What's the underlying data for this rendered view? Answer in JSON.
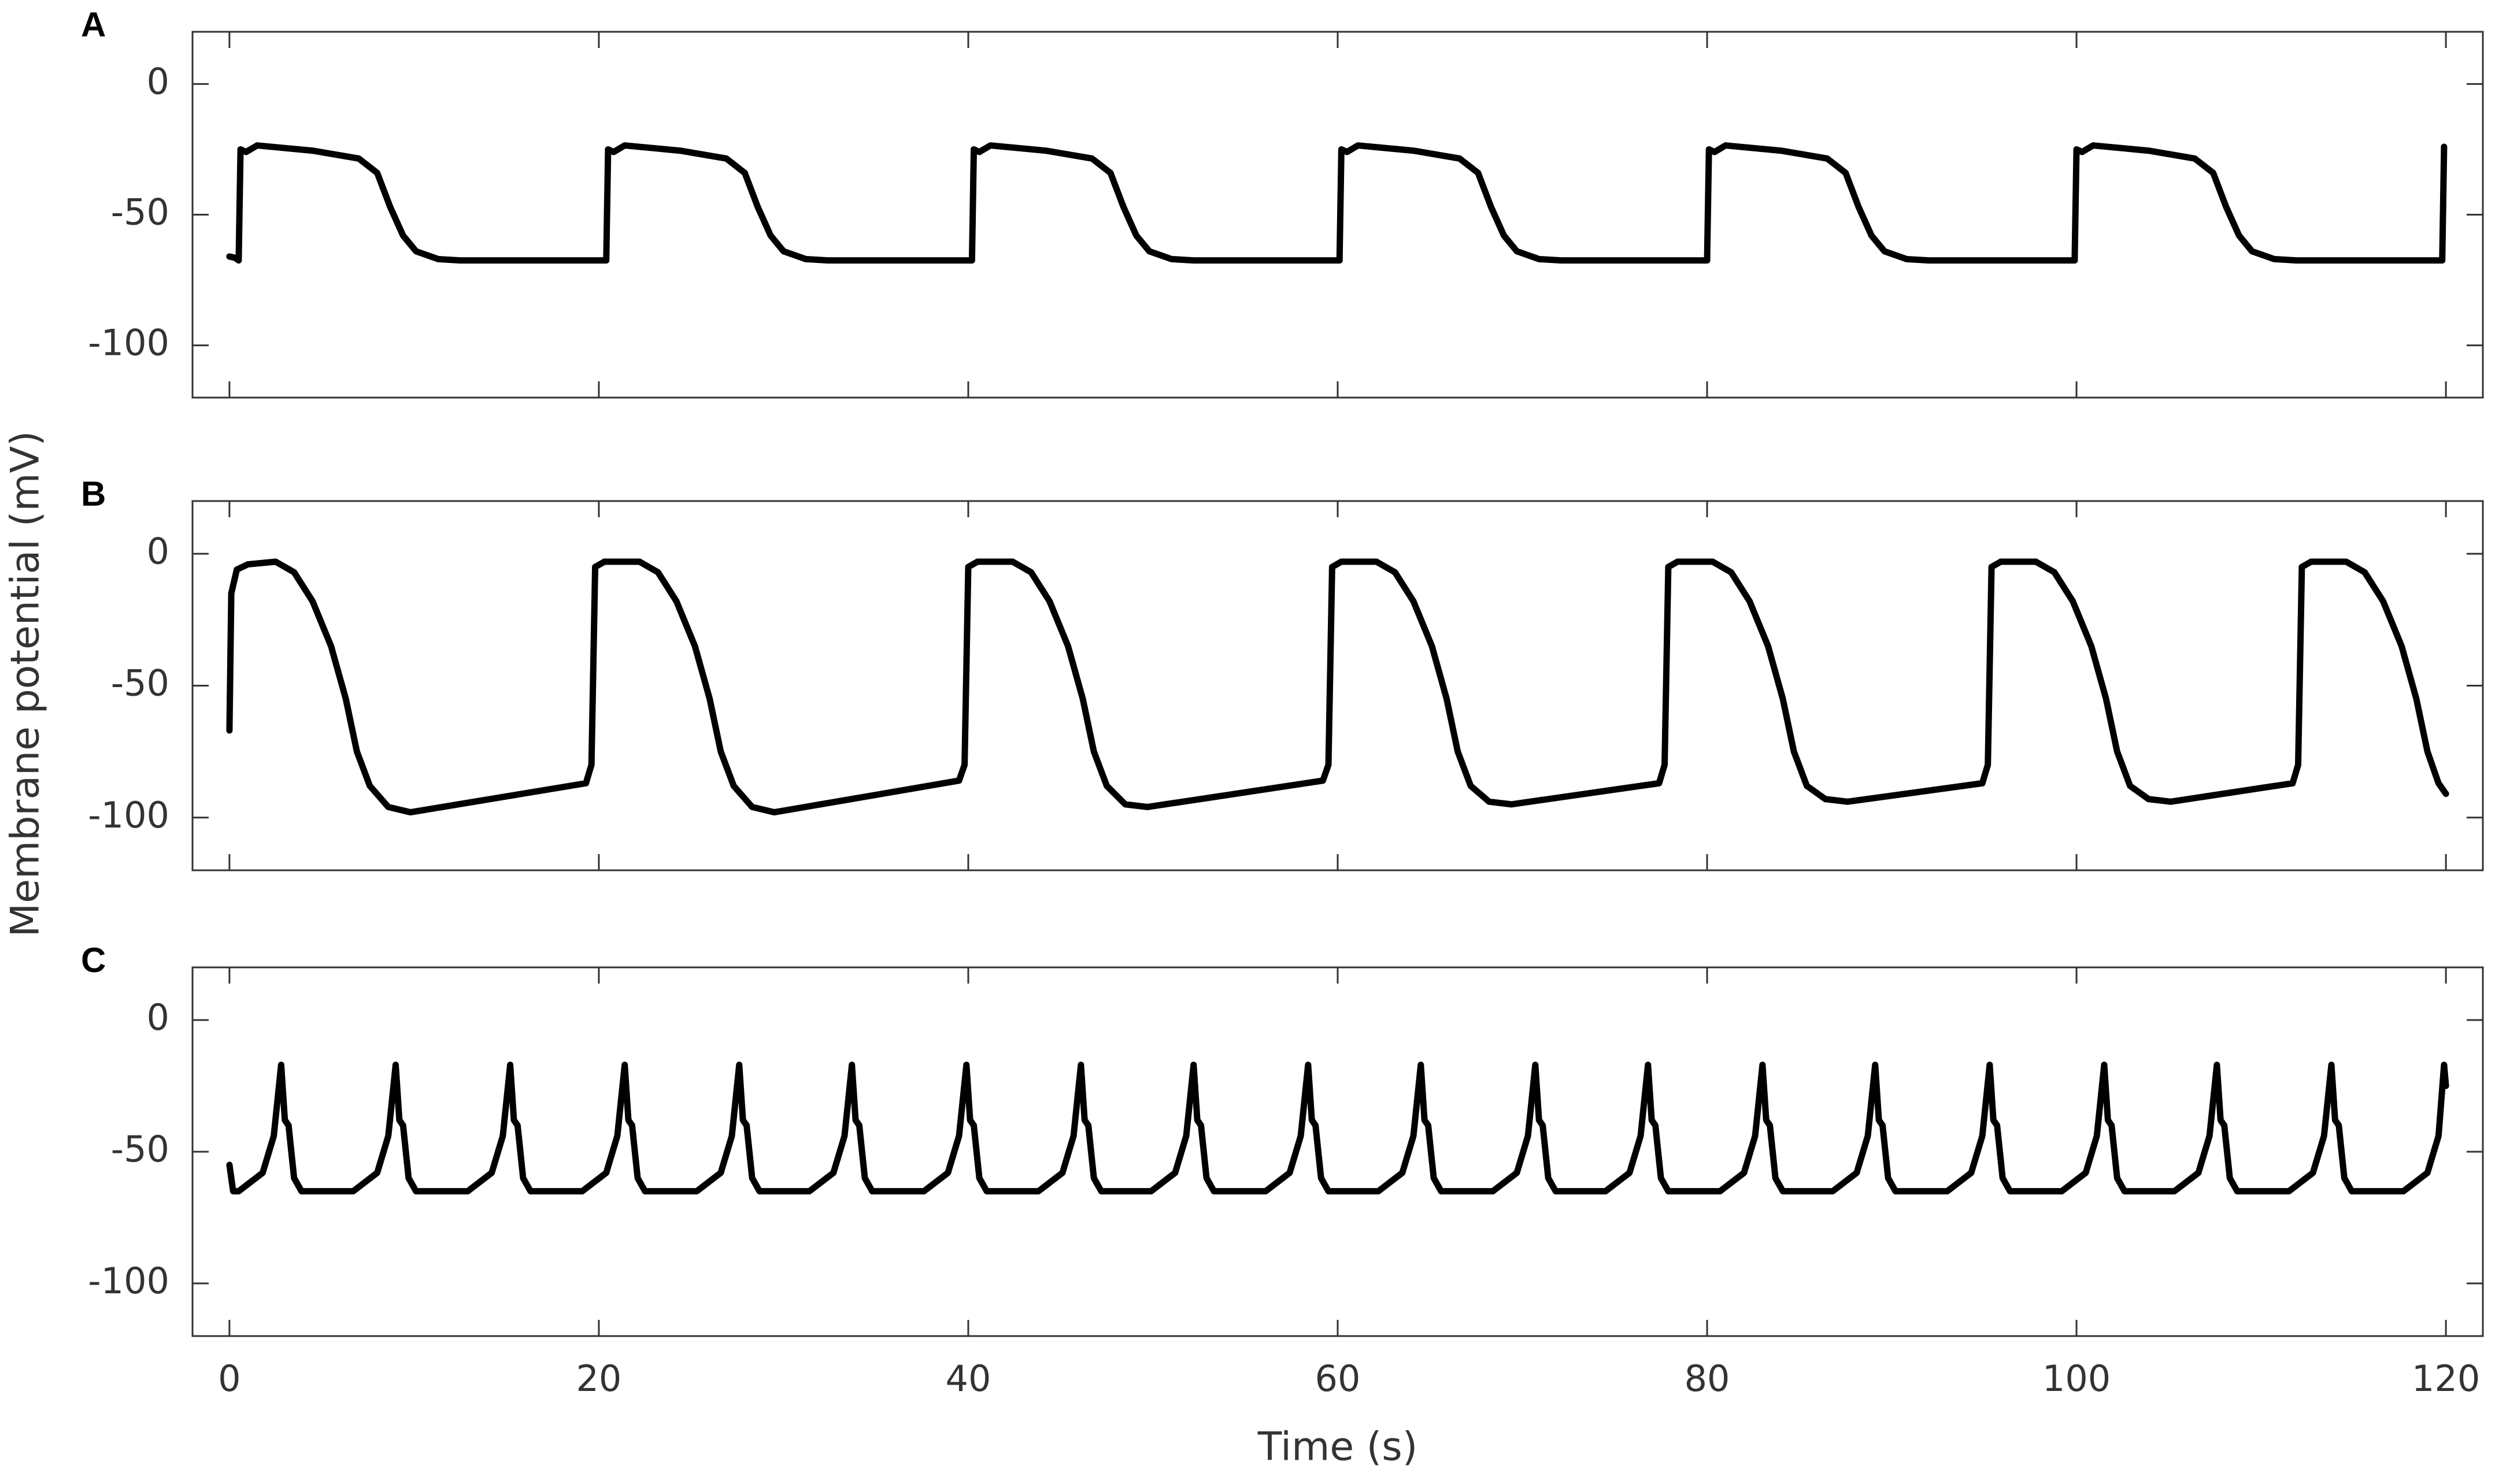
{
  "chart_data": [
    {
      "type": "line",
      "label": "A",
      "color": "#000000",
      "xlim": [
        -2,
        122
      ],
      "ylim": [
        -120,
        20
      ],
      "xticks": [
        0,
        20,
        40,
        60,
        80,
        100,
        120
      ],
      "yticks": [
        -100,
        -50,
        0
      ],
      "x": [
        0,
        0.3,
        0.5,
        0.6,
        0.9,
        1.5,
        4.5,
        7.0,
        8.0,
        8.7,
        9.4,
        10.1,
        11.3,
        12.5,
        20.4,
        20.5,
        20.8,
        21.4,
        24.4,
        26.9,
        27.9,
        28.6,
        29.3,
        30.0,
        31.2,
        32.4,
        40.2,
        40.3,
        40.6,
        41.2,
        44.2,
        46.7,
        47.7,
        48.4,
        49.1,
        49.8,
        51.0,
        52.2,
        60.1,
        60.2,
        60.5,
        61.1,
        64.1,
        66.6,
        67.6,
        68.3,
        69.0,
        69.7,
        70.9,
        72.1,
        80.0,
        80.1,
        80.4,
        81.0,
        84.0,
        86.5,
        87.5,
        88.2,
        88.9,
        89.6,
        90.8,
        92.0,
        99.9,
        100.0,
        100.3,
        100.9,
        103.9,
        106.4,
        107.4,
        108.1,
        108.8,
        109.5,
        110.7,
        111.9,
        119.8,
        119.9
      ],
      "values": [
        -66,
        -66.5,
        -67.5,
        -25,
        -26,
        -23.5,
        -25.5,
        -28.5,
        -34,
        -47,
        -58,
        -64,
        -67,
        -67.5,
        -67.5,
        -25,
        -26,
        -23.5,
        -25.5,
        -28.5,
        -34,
        -47,
        -58,
        -64,
        -67,
        -67.5,
        -67.5,
        -25,
        -26,
        -23.5,
        -25.5,
        -28.5,
        -34,
        -47,
        -58,
        -64,
        -67,
        -67.5,
        -67.5,
        -25,
        -26,
        -23.5,
        -25.5,
        -28.5,
        -34,
        -47,
        -58,
        -64,
        -67,
        -67.5,
        -67.5,
        -25,
        -26,
        -23.5,
        -25.5,
        -28.5,
        -34,
        -47,
        -58,
        -64,
        -67,
        -67.5,
        -67.5,
        -25,
        -26,
        -23.5,
        -25.5,
        -28.5,
        -34,
        -47,
        -58,
        -64,
        -67,
        -67.5,
        -67.5,
        -24
      ]
    },
    {
      "type": "line",
      "label": "B",
      "color": "#000000",
      "ylabel": "Membrane potential (mV)",
      "xlim": [
        -2,
        122
      ],
      "ylim": [
        -120,
        20
      ],
      "xticks": [
        0,
        20,
        40,
        60,
        80,
        100,
        120
      ],
      "yticks": [
        -100,
        -50,
        0
      ],
      "x": [
        0,
        0.1,
        0.4,
        1.0,
        2.5,
        3.5,
        4.5,
        5.5,
        6.3,
        6.9,
        7.6,
        8.6,
        9.8,
        19.3,
        19.6,
        19.8,
        20.3,
        22.2,
        23.2,
        24.2,
        25.2,
        26.0,
        26.6,
        27.3,
        28.3,
        29.5,
        39.5,
        39.8,
        40.0,
        40.5,
        42.4,
        43.4,
        44.4,
        45.4,
        46.2,
        46.8,
        47.5,
        48.5,
        49.7,
        59.2,
        59.5,
        59.7,
        60.2,
        62.1,
        63.1,
        64.1,
        65.1,
        65.9,
        66.5,
        67.2,
        68.2,
        69.4,
        77.4,
        77.7,
        77.9,
        78.4,
        80.3,
        81.3,
        82.3,
        83.3,
        84.1,
        84.7,
        85.4,
        86.4,
        87.6,
        94.9,
        95.2,
        95.4,
        95.9,
        97.8,
        98.8,
        99.8,
        100.8,
        101.6,
        102.2,
        102.9,
        103.9,
        105.1,
        111.7,
        112.0,
        112.2,
        112.7,
        114.6,
        115.6,
        116.6,
        117.6,
        118.4,
        119.0,
        119.6,
        120.0
      ],
      "values": [
        -67,
        -15,
        -6,
        -4,
        -3,
        -7,
        -18,
        -35,
        -55,
        -75,
        -88,
        -96,
        -98,
        -87,
        -80,
        -5,
        -3,
        -3,
        -7,
        -18,
        -35,
        -55,
        -75,
        -88,
        -96,
        -98,
        -86,
        -80,
        -5,
        -3,
        -3,
        -7,
        -18,
        -35,
        -55,
        -75,
        -88,
        -95,
        -96,
        -86,
        -80,
        -5,
        -3,
        -3,
        -7,
        -18,
        -35,
        -55,
        -75,
        -88,
        -94,
        -95,
        -87,
        -80,
        -5,
        -3,
        -3,
        -7,
        -18,
        -35,
        -55,
        -75,
        -88,
        -93,
        -94,
        -87,
        -80,
        -5,
        -3,
        -3,
        -7,
        -18,
        -35,
        -55,
        -75,
        -88,
        -93,
        -94,
        -87,
        -80,
        -5,
        -3,
        -3,
        -7,
        -18,
        -35,
        -55,
        -75,
        -87,
        -91
      ]
    },
    {
      "type": "line",
      "label": "C",
      "color": "#000000",
      "xlabel": "Time (s)",
      "xlim": [
        -2,
        122
      ],
      "ylim": [
        -120,
        20
      ],
      "xticks": [
        0,
        20,
        40,
        60,
        80,
        100,
        120
      ],
      "yticks": [
        -100,
        -50,
        0
      ],
      "x": [
        0,
        0.2,
        0.5,
        1.8,
        2.4,
        2.8,
        3.0,
        3.2,
        3.5,
        3.9,
        6.7,
        8.0,
        8.6,
        9.0,
        9.2,
        9.4,
        9.7,
        10.1,
        12.9,
        14.2,
        14.8,
        15.2,
        15.4,
        15.6,
        15.9,
        16.3,
        19.1,
        20.4,
        21.0,
        21.4,
        21.6,
        21.8,
        22.1,
        22.5,
        25.3,
        26.6,
        27.2,
        27.6,
        27.8,
        28.0,
        28.3,
        28.7,
        31.4,
        32.7,
        33.3,
        33.7,
        33.9,
        34.1,
        34.4,
        34.8,
        37.6,
        38.9,
        39.5,
        39.9,
        40.1,
        40.3,
        40.6,
        41.0,
        43.8,
        45.1,
        45.7,
        46.1,
        46.3,
        46.5,
        46.8,
        47.2,
        49.9,
        51.2,
        51.8,
        52.2,
        52.4,
        52.6,
        52.9,
        53.3,
        56.1,
        57.4,
        58.0,
        58.4,
        58.6,
        58.8,
        59.1,
        59.5,
        62.2,
        63.5,
        64.1,
        64.5,
        64.7,
        64.9,
        65.2,
        65.6,
        68.4,
        69.7,
        70.3,
        70.7,
        70.9,
        71.1,
        71.4,
        71.8,
        74.5,
        75.8,
        76.4,
        76.8,
        77.0,
        77.2,
        77.5,
        77.9,
        80.7,
        82.0,
        82.6,
        83.0,
        83.2,
        83.4,
        83.7,
        84.1,
        86.8,
        88.1,
        88.7,
        89.1,
        89.3,
        89.5,
        89.8,
        90.2,
        93.0,
        94.3,
        94.9,
        95.3,
        95.5,
        95.7,
        96.0,
        96.4,
        99.2,
        100.5,
        101.1,
        101.5,
        101.7,
        101.9,
        102.2,
        102.6,
        105.3,
        106.6,
        107.2,
        107.6,
        107.8,
        108.0,
        108.3,
        108.7,
        111.5,
        112.8,
        113.4,
        113.8,
        114.0,
        114.2,
        114.5,
        114.9,
        117.7,
        119.0,
        119.6,
        119.9,
        120.0
      ],
      "values": [
        -55,
        -65,
        -65,
        -58,
        -44,
        -17,
        -38,
        -40,
        -60,
        -65,
        -65,
        -58,
        -44,
        -17,
        -38,
        -40,
        -60,
        -65,
        -65,
        -58,
        -44,
        -17,
        -38,
        -40,
        -60,
        -65,
        -65,
        -58,
        -44,
        -17,
        -38,
        -40,
        -60,
        -65,
        -65,
        -58,
        -44,
        -17,
        -38,
        -40,
        -60,
        -65,
        -65,
        -58,
        -44,
        -17,
        -38,
        -40,
        -60,
        -65,
        -65,
        -58,
        -44,
        -17,
        -38,
        -40,
        -60,
        -65,
        -65,
        -58,
        -44,
        -17,
        -38,
        -40,
        -60,
        -65,
        -65,
        -58,
        -44,
        -17,
        -38,
        -40,
        -60,
        -65,
        -65,
        -58,
        -44,
        -17,
        -38,
        -40,
        -60,
        -65,
        -65,
        -58,
        -44,
        -17,
        -38,
        -40,
        -60,
        -65,
        -65,
        -58,
        -44,
        -17,
        -38,
        -40,
        -60,
        -65,
        -65,
        -58,
        -44,
        -17,
        -38,
        -40,
        -60,
        -65,
        -65,
        -58,
        -44,
        -17,
        -38,
        -40,
        -60,
        -65,
        -65,
        -58,
        -44,
        -17,
        -38,
        -40,
        -60,
        -65,
        -65,
        -58,
        -44,
        -17,
        -38,
        -40,
        -60,
        -65,
        -65,
        -58,
        -44,
        -17,
        -38,
        -40,
        -60,
        -65,
        -65,
        -58,
        -44,
        -17,
        -38,
        -40,
        -60,
        -65,
        -65,
        -58,
        -44,
        -17,
        -38,
        -40,
        -60,
        -65,
        -65,
        -58,
        -44,
        -17,
        -25
      ]
    }
  ]
}
